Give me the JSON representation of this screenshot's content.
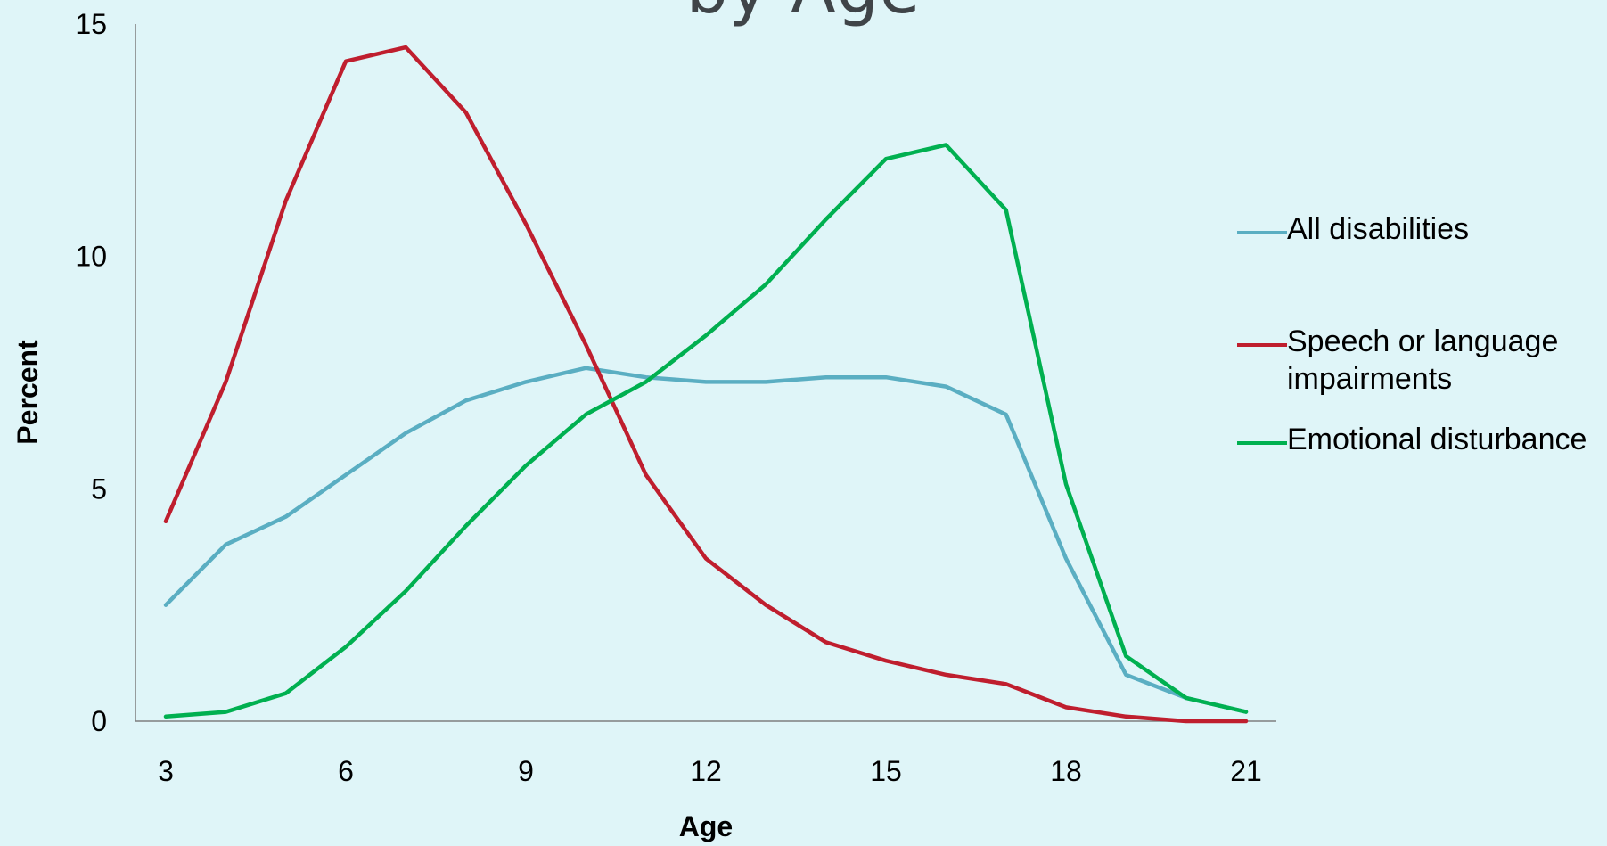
{
  "chart_data": {
    "type": "line",
    "title": "by Age",
    "xlabel": "Age",
    "ylabel": "Percent",
    "x": [
      3,
      4,
      5,
      6,
      7,
      8,
      9,
      10,
      11,
      12,
      13,
      14,
      15,
      16,
      17,
      18,
      19,
      20,
      21
    ],
    "xlim": [
      3,
      21
    ],
    "ylim": [
      0,
      15
    ],
    "x_ticks": [
      "3",
      "6",
      "9",
      "12",
      "15",
      "18",
      "21"
    ],
    "y_ticks": [
      "0",
      "5",
      "10",
      "15"
    ],
    "grid": false,
    "legend_position": "right",
    "series": [
      {
        "name": "All disabilities",
        "color": "#5aaec2",
        "values": [
          2.5,
          3.8,
          4.4,
          5.3,
          6.2,
          6.9,
          7.3,
          7.6,
          7.4,
          7.3,
          7.3,
          7.4,
          7.4,
          7.2,
          6.6,
          3.5,
          1.0,
          0.5,
          0.2
        ]
      },
      {
        "name": "Speech or language impairments",
        "color": "#bf1e2e",
        "values": [
          4.3,
          7.3,
          11.2,
          14.2,
          14.5,
          13.1,
          10.7,
          8.1,
          5.3,
          3.5,
          2.5,
          1.7,
          1.3,
          1.0,
          0.8,
          0.3,
          0.1,
          0.0,
          0.0
        ]
      },
      {
        "name": "Emotional disturbance",
        "color": "#00b050",
        "values": [
          0.1,
          0.2,
          0.6,
          1.6,
          2.8,
          4.2,
          5.5,
          6.6,
          7.3,
          8.3,
          9.4,
          10.8,
          12.1,
          12.4,
          11.0,
          5.1,
          1.4,
          0.5,
          0.2
        ]
      }
    ]
  }
}
